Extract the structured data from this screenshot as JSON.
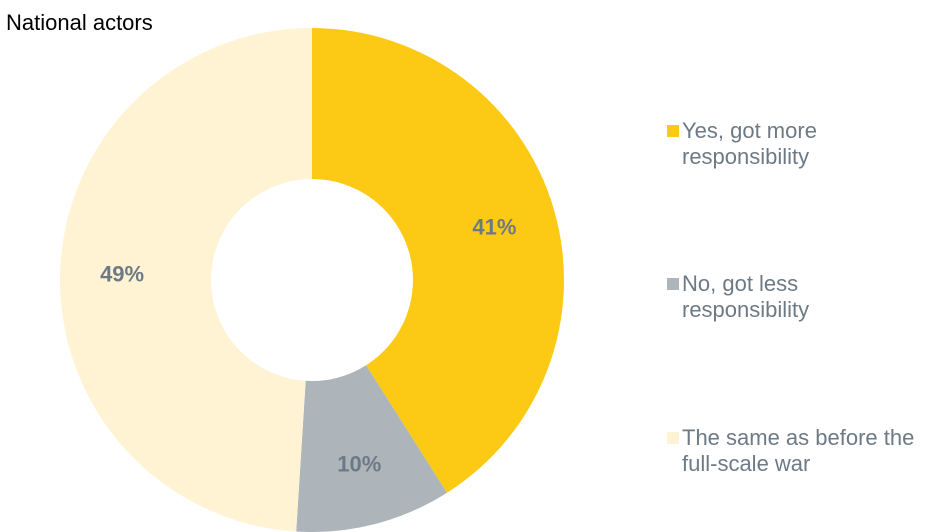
{
  "chart_data": {
    "type": "pie",
    "title": "National actors",
    "donut": true,
    "start_angle_deg": 0,
    "direction": "clockwise",
    "slices": [
      {
        "label": "Yes, got more responsibility",
        "value": 41,
        "display": "41%",
        "color": "#fcca15"
      },
      {
        "label": "No, got less responsibility",
        "value": 10,
        "display": "10%",
        "color": "#adb5ba"
      },
      {
        "label": "The same as before the full-scale war",
        "value": 49,
        "display": "49%",
        "color": "#fff3d4"
      }
    ],
    "legend_position": "right"
  }
}
